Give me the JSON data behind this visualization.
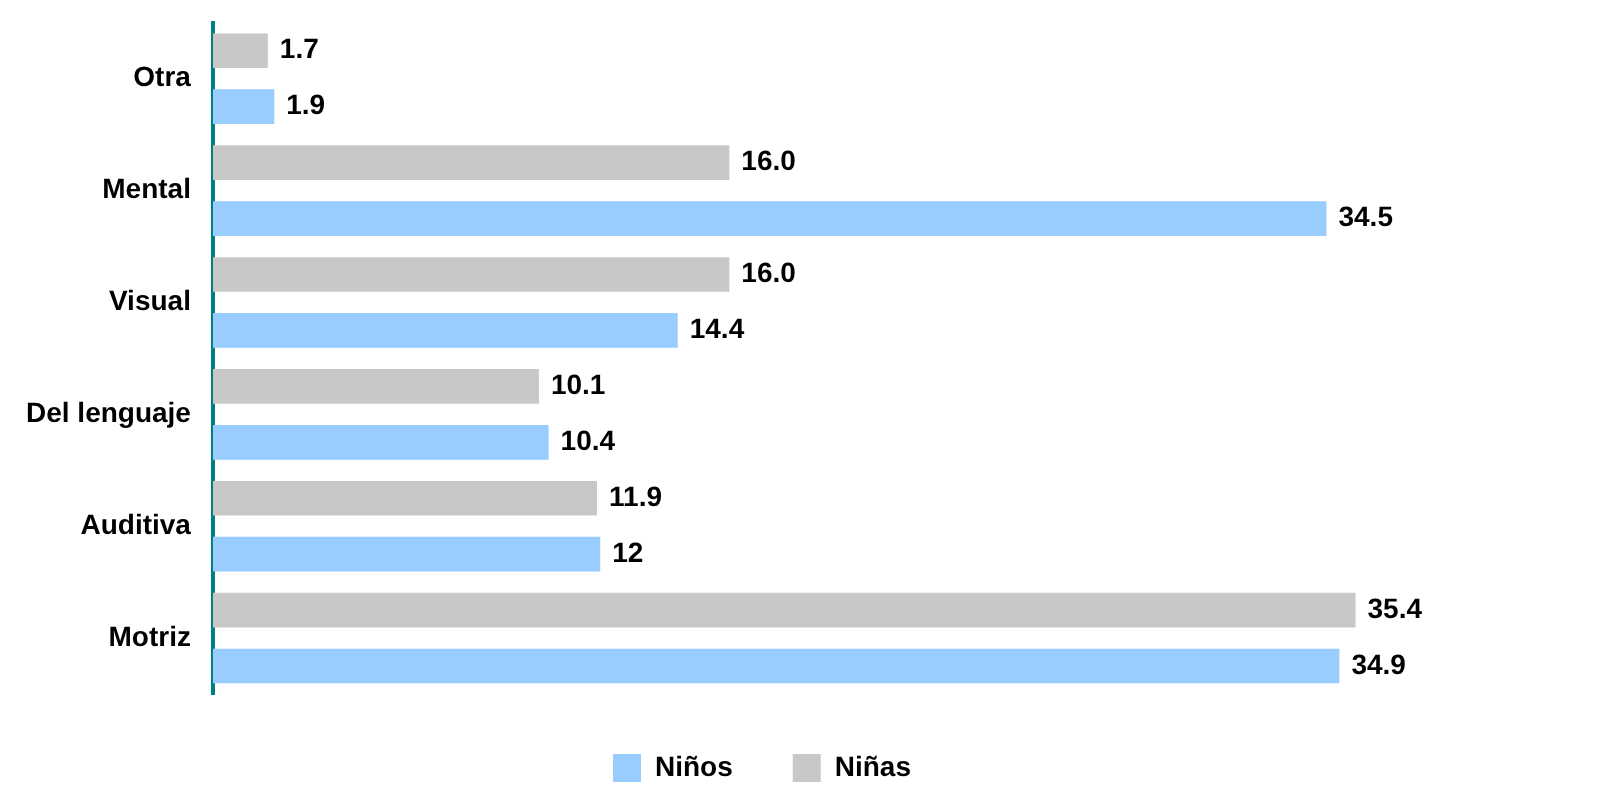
{
  "chart_data": {
    "type": "bar",
    "orientation": "horizontal",
    "categories": [
      "Otra",
      "Mental",
      "Visual",
      "Del lenguaje",
      "Auditiva",
      "Motriz"
    ],
    "series": [
      {
        "name": "Niñas",
        "color": "#c8c8c8",
        "values": [
          1.7,
          16.0,
          16.0,
          10.1,
          11.9,
          35.4
        ],
        "value_labels": [
          "1.7",
          "16.0",
          "16.0",
          "10.1",
          "11.9",
          "35.4"
        ]
      },
      {
        "name": "Niños",
        "color": "#99ccff",
        "values": [
          1.9,
          34.5,
          14.4,
          10.4,
          12,
          34.9
        ],
        "value_labels": [
          "1.9",
          "34.5",
          "14.4",
          "10.4",
          "12",
          "34.9"
        ]
      }
    ],
    "legend": "bottom",
    "grid": false
  }
}
